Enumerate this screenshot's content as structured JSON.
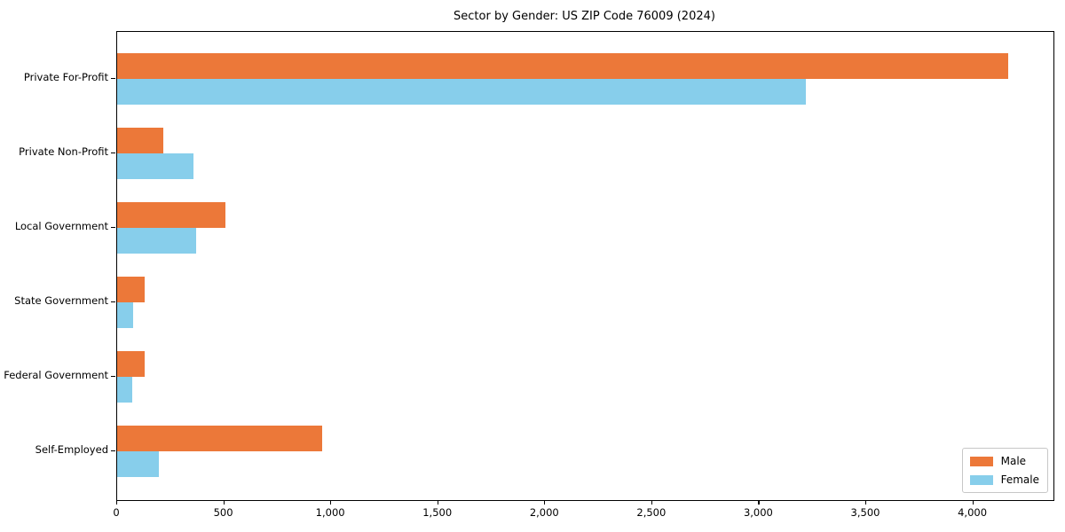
{
  "chart_data": {
    "type": "bar",
    "orientation": "horizontal",
    "title": "Sector by Gender: US ZIP Code 76009 (2024)",
    "categories": [
      "Private For-Profit",
      "Private Non-Profit",
      "Local Government",
      "State Government",
      "Federal Government",
      "Self-Employed"
    ],
    "series": [
      {
        "name": "Male",
        "color": "#EC7839",
        "values": [
          4165,
          215,
          505,
          130,
          130,
          960
        ]
      },
      {
        "name": "Female",
        "color": "#87CEEB",
        "values": [
          3220,
          355,
          370,
          75,
          72,
          195
        ]
      }
    ],
    "xlabel": "",
    "ylabel": "",
    "xlim": [
      0,
      4375
    ],
    "xticks": [
      0,
      500,
      1000,
      1500,
      2000,
      2500,
      3000,
      3500,
      4000
    ],
    "x_tick_format": "comma",
    "legend_position": "lower right",
    "grid": false,
    "background_color": "#ffffff",
    "axis_color": "#000000"
  }
}
